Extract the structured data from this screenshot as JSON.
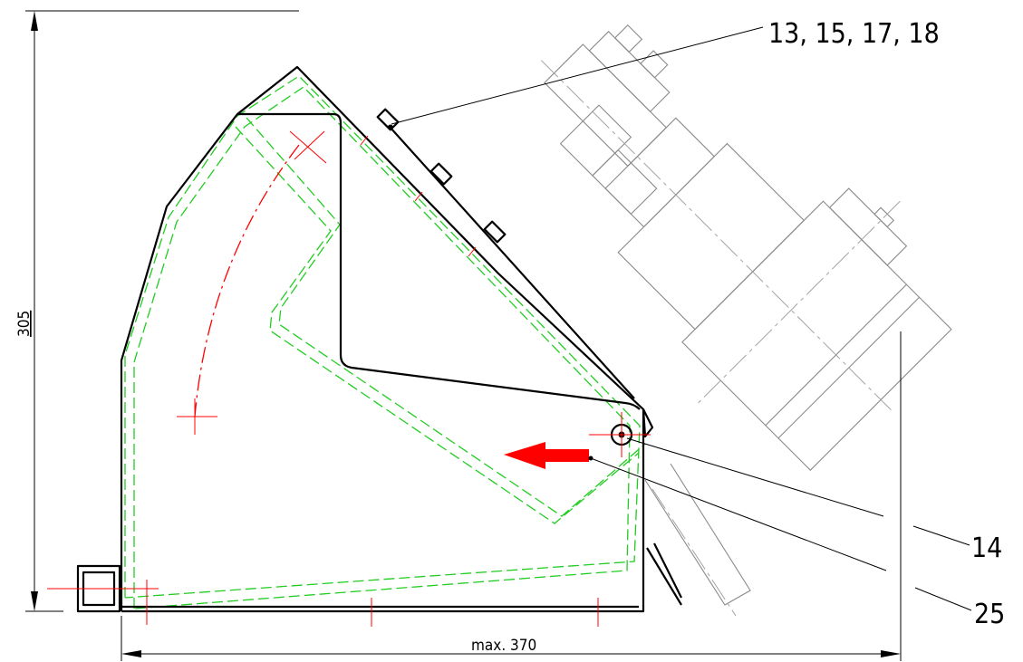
{
  "drawing": {
    "callouts": {
      "bolts": "13, 15, 17, 18",
      "pivot": "14",
      "arrow": "25"
    },
    "dimensions": {
      "height": "305",
      "width": "max. 370"
    },
    "colors": {
      "outline": "#000000",
      "hidden_lines": "#22cc22",
      "center_lines": "#ff0000",
      "motor": "#8a8a8a",
      "arrow": "#ff0000"
    }
  }
}
